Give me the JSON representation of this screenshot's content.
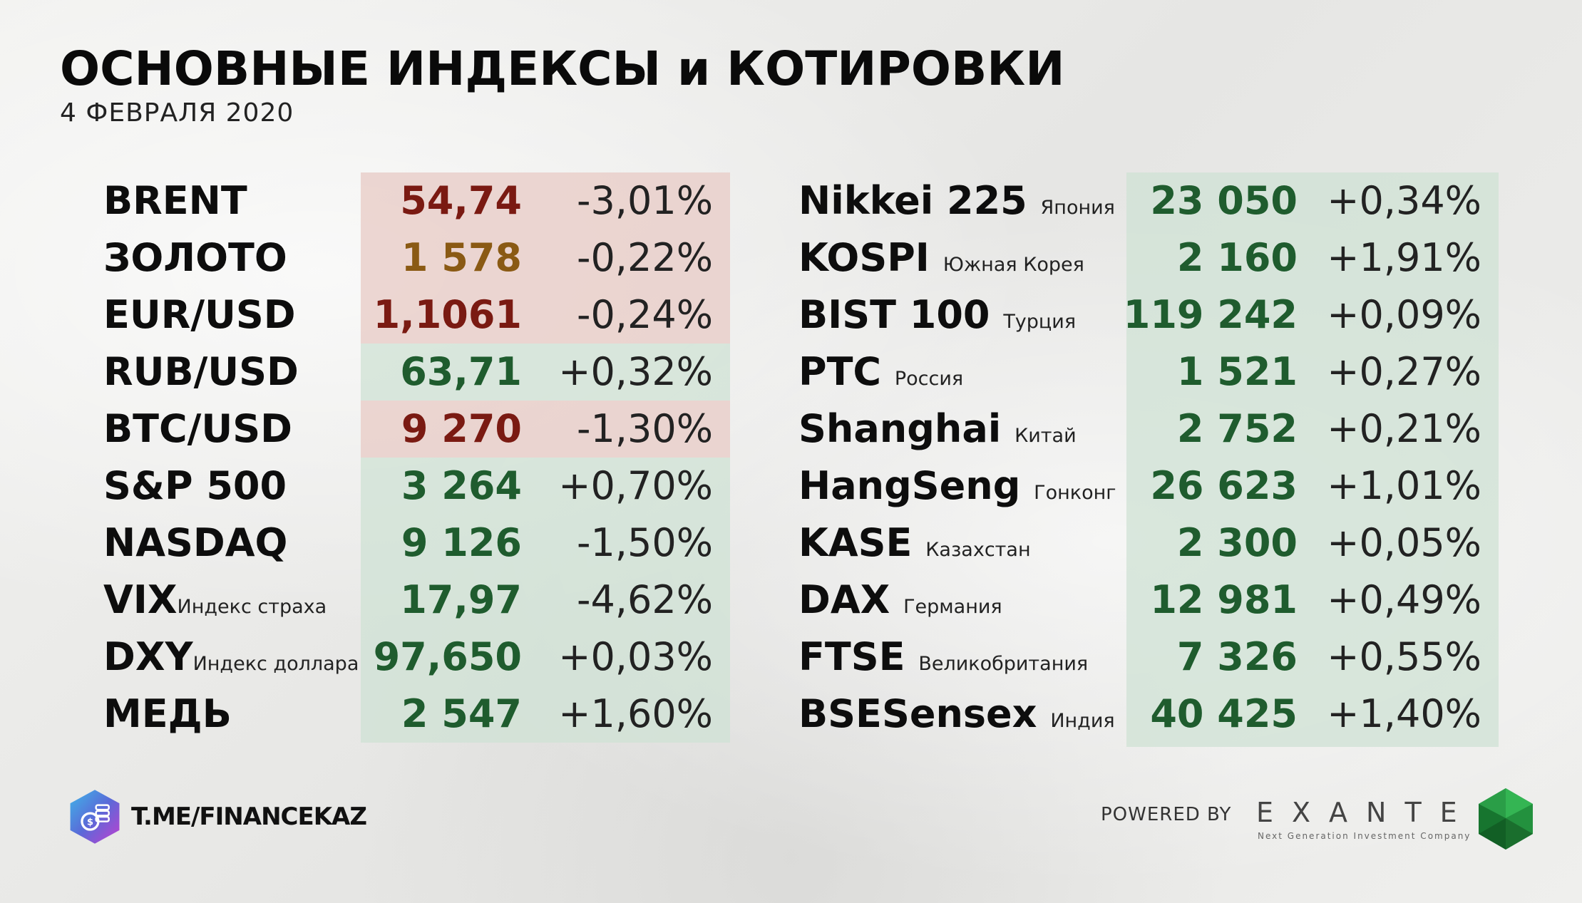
{
  "header": {
    "title": "ОСНОВНЫЕ ИНДЕКСЫ и КОТИРОВКИ",
    "date": "4 ФЕВРАЛЯ 2020"
  },
  "colors": {
    "positive_value": "#1f5c2e",
    "negative_value": "#7a1a12",
    "gold_value": "#8a5a14",
    "green_panel": "#cfe1d4",
    "red_panel": "#e8cdc8"
  },
  "left_quotes": [
    {
      "name": "BRENT",
      "sub": "",
      "value": "54,74",
      "change": "-3,01%",
      "tone": "red"
    },
    {
      "name": "ЗОЛОТО",
      "sub": "",
      "value": "1 578",
      "change": "-0,22%",
      "tone": "red"
    },
    {
      "name": "EUR/USD",
      "sub": "",
      "value": "1,1061",
      "change": "-0,24%",
      "tone": "red"
    },
    {
      "name": "RUB/USD",
      "sub": "",
      "value": "63,71",
      "change": "+0,32%",
      "tone": "green"
    },
    {
      "name": "BTC/USD",
      "sub": "",
      "value": "9 270",
      "change": "-1,30%",
      "tone": "red"
    },
    {
      "name": "S&P 500",
      "sub": "",
      "value": "3 264",
      "change": "+0,70%",
      "tone": "green"
    },
    {
      "name": "NASDAQ",
      "sub": "",
      "value": "9 126",
      "change": "-1,50%",
      "tone": "green"
    },
    {
      "name": "VIX",
      "sub": "Индекс страха",
      "value": "17,97",
      "change": "-4,62%",
      "tone": "green"
    },
    {
      "name": "DXY",
      "sub": "Индекс доллара",
      "value": "97,650",
      "change": "+0,03%",
      "tone": "green"
    },
    {
      "name": "МЕДЬ",
      "sub": "",
      "value": "2 547",
      "change": "+1,60%",
      "tone": "green"
    }
  ],
  "right_quotes": [
    {
      "name": "Nikkei 225",
      "sub": "Япония",
      "value": "23 050",
      "change": "+0,34%"
    },
    {
      "name": "KOSPI",
      "sub": "Южная Корея",
      "value": "2 160",
      "change": "+1,91%"
    },
    {
      "name": "BIST 100",
      "sub": "Турция",
      "value": "119 242",
      "change": "+0,09%"
    },
    {
      "name": "РТС",
      "sub": "Россия",
      "value": "1 521",
      "change": "+0,27%"
    },
    {
      "name": "Shanghai",
      "sub": "Китай",
      "value": "2 752",
      "change": "+0,21%"
    },
    {
      "name": "HangSeng",
      "sub": "Гонконг",
      "value": "26 623",
      "change": "+1,01%"
    },
    {
      "name": "KASE",
      "sub": "Казахстан",
      "value": "2 300",
      "change": "+0,05%"
    },
    {
      "name": "DAX",
      "sub": "Германия",
      "value": "12 981",
      "change": "+0,49%"
    },
    {
      "name": "FTSE",
      "sub": "Великобритания",
      "value": "7 326",
      "change": "+0,55%"
    },
    {
      "name": "BSESensex",
      "sub": "Индия",
      "value": "40 425",
      "change": "+1,40%"
    }
  ],
  "footer": {
    "channel": "T.ME/FINANCEKAZ",
    "powered_by": "POWERED BY",
    "brand": "EXANTE",
    "brand_tagline": "Next Generation Investment Company"
  }
}
